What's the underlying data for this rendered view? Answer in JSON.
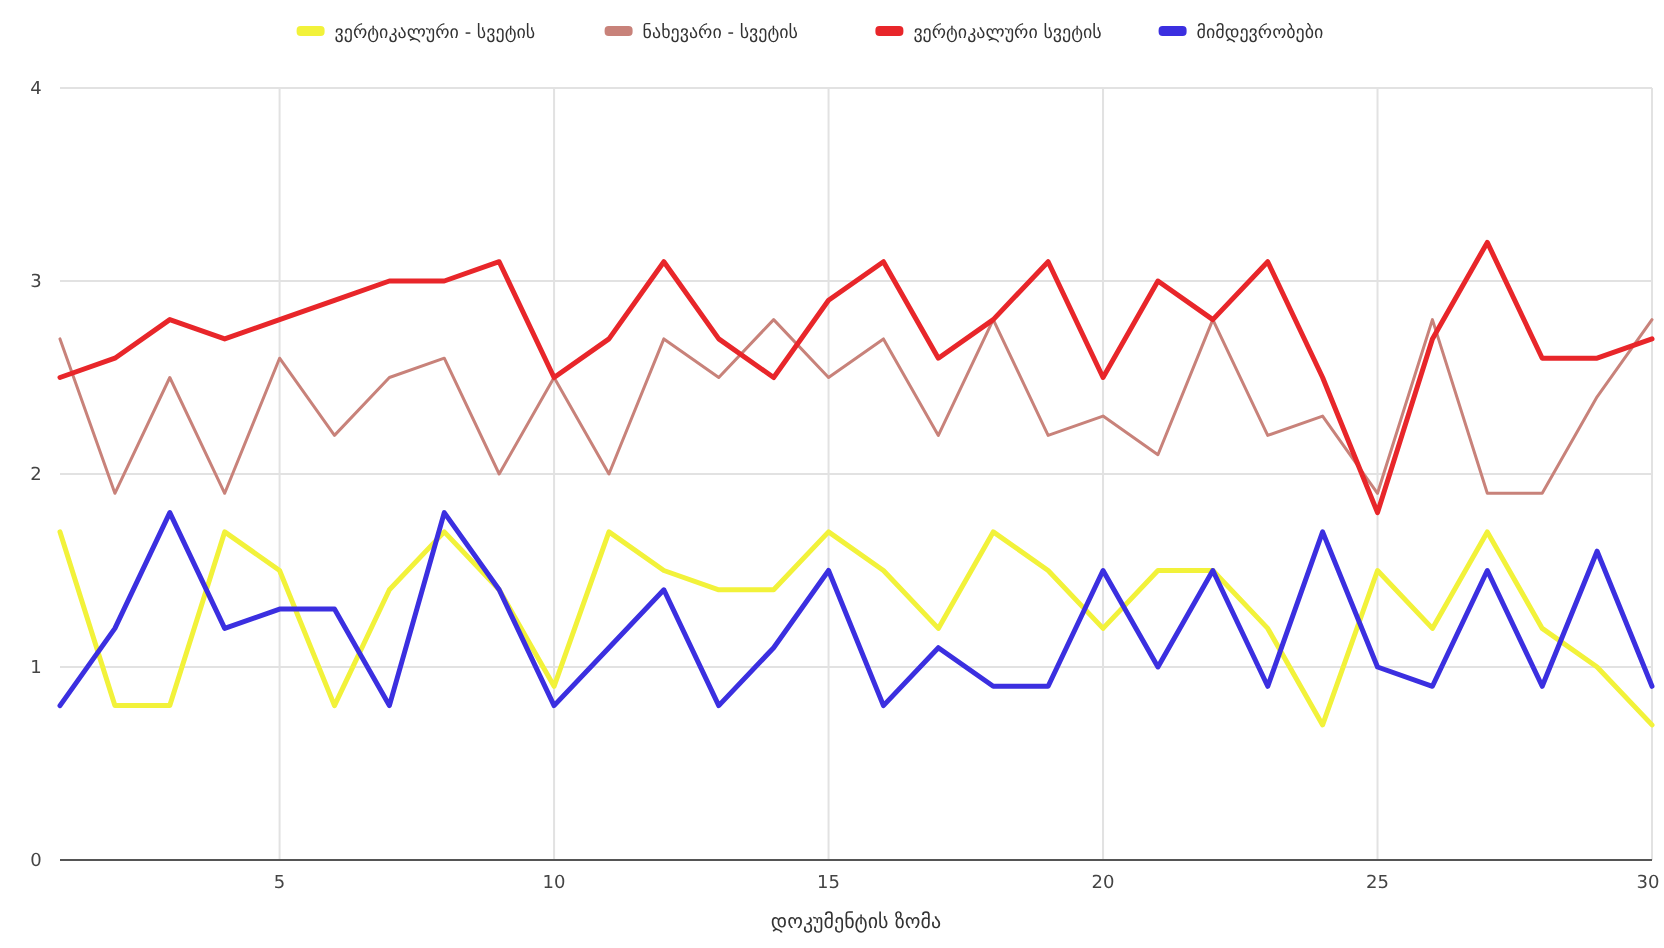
{
  "chart_data": {
    "type": "line",
    "xlabel": "დოკუმენტის ზომა",
    "x": [
      1,
      2,
      3,
      4,
      5,
      6,
      7,
      8,
      9,
      10,
      11,
      12,
      13,
      14,
      15,
      16,
      17,
      18,
      19,
      20,
      21,
      22,
      23,
      24,
      25,
      26,
      27,
      28,
      29,
      30
    ],
    "series": [
      {
        "name": "ვერტიკალური - სვეტის",
        "color": "#f2f23a",
        "values": [
          1.7,
          0.8,
          0.8,
          1.7,
          1.5,
          0.8,
          1.4,
          1.7,
          1.4,
          0.9,
          1.7,
          1.5,
          1.4,
          1.4,
          1.7,
          1.5,
          1.2,
          1.7,
          1.5,
          1.2,
          1.5,
          1.5,
          1.2,
          0.7,
          1.5,
          1.2,
          1.7,
          1.2,
          1.0,
          0.7
        ]
      },
      {
        "name": "ნახევარი - სვეტის",
        "color": "#c8827a",
        "values": [
          2.7,
          1.9,
          2.5,
          1.9,
          2.6,
          2.2,
          2.5,
          2.6,
          2.0,
          2.5,
          2.0,
          2.7,
          2.5,
          2.8,
          2.5,
          2.7,
          2.2,
          2.8,
          2.2,
          2.3,
          2.1,
          2.8,
          2.2,
          2.3,
          1.9,
          2.8,
          1.9,
          1.9,
          2.4,
          2.8
        ]
      },
      {
        "name": "ვერტიკალური სვეტის",
        "color": "#e8262a",
        "values": [
          2.5,
          2.6,
          2.8,
          2.7,
          2.8,
          2.9,
          3.0,
          3.0,
          3.1,
          2.5,
          2.7,
          3.1,
          2.7,
          2.5,
          2.9,
          3.1,
          2.6,
          2.8,
          3.1,
          2.5,
          3.0,
          2.8,
          3.1,
          2.5,
          1.8,
          2.7,
          3.2,
          2.6,
          2.6,
          2.7
        ]
      },
      {
        "name": "მიმდევრობები",
        "color": "#3b2fe0",
        "values": [
          0.8,
          1.2,
          1.8,
          1.2,
          1.3,
          1.3,
          0.8,
          1.8,
          1.4,
          0.8,
          1.1,
          1.4,
          0.8,
          1.1,
          1.5,
          0.8,
          1.1,
          0.9,
          0.9,
          1.5,
          1.0,
          1.5,
          0.9,
          1.7,
          1.0,
          0.9,
          1.5,
          0.9,
          1.6,
          0.9
        ]
      }
    ],
    "xlim": [
      1,
      30
    ],
    "xticks": [
      5,
      10,
      15,
      20,
      25,
      30
    ],
    "ylim": [
      0,
      4
    ],
    "yticks": [
      0,
      1,
      2,
      3,
      4
    ],
    "grid": true,
    "legend": "top",
    "line_style": "solid",
    "marker": "none"
  }
}
